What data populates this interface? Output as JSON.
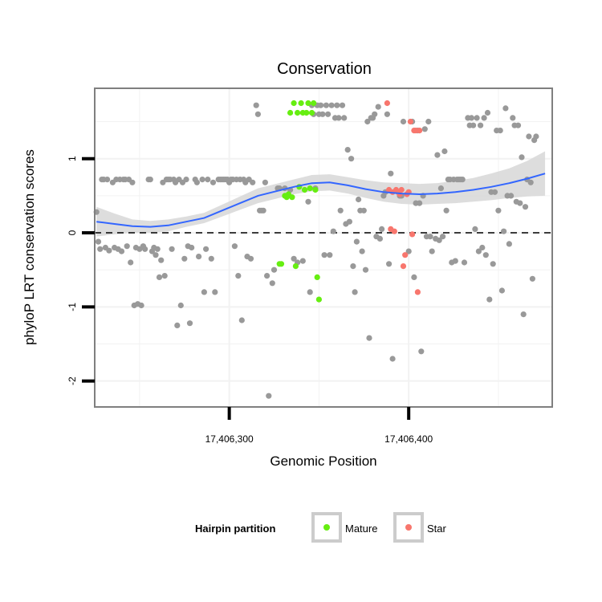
{
  "chart_data": {
    "type": "scatter",
    "title": "Conservation",
    "xlabel": "Genomic Position",
    "ylabel": "phyloP LRT conservation scores",
    "xlim": [
      17406225,
      17406480
    ],
    "ylim": [
      -2.35,
      1.95
    ],
    "x_ticks": [
      17406300,
      17406400
    ],
    "x_tick_labels": [
      "17,406,300",
      "17,406,400"
    ],
    "y_ticks": [
      -2,
      -1,
      0,
      1
    ],
    "y_tick_labels": [
      "-2",
      "-1",
      "0",
      "1"
    ],
    "grid": true,
    "reference_line": {
      "y": 0,
      "style": "dashed",
      "color": "#000000"
    },
    "legend": {
      "title": "Hairpin partition",
      "position": "bottom",
      "entries": [
        {
          "label": "Mature",
          "color": "#66ee11"
        },
        {
          "label": "Star",
          "color": "#f8766d"
        }
      ]
    },
    "colors": {
      "other": "#999999",
      "mature": "#66ee11",
      "star": "#f8766d",
      "smooth": "#3366ff",
      "ribbon": "#d9d9d9"
    },
    "series": [
      {
        "key": "other",
        "points": [
          [
            17406226,
            0.28
          ],
          [
            17406227,
            -0.12
          ],
          [
            17406228,
            -0.22
          ],
          [
            17406229,
            0.72
          ],
          [
            17406230,
            0.72
          ],
          [
            17406231,
            -0.2
          ],
          [
            17406232,
            0.72
          ],
          [
            17406233,
            -0.24
          ],
          [
            17406235,
            0.68
          ],
          [
            17406236,
            -0.2
          ],
          [
            17406237,
            0.72
          ],
          [
            17406238,
            -0.22
          ],
          [
            17406239,
            0.72
          ],
          [
            17406240,
            -0.25
          ],
          [
            17406241,
            0.72
          ],
          [
            17406242,
            0.72
          ],
          [
            17406243,
            -0.18
          ],
          [
            17406244,
            0.72
          ],
          [
            17406245,
            -0.4
          ],
          [
            17406246,
            0.68
          ],
          [
            17406247,
            -0.98
          ],
          [
            17406248,
            -0.2
          ],
          [
            17406249,
            -0.96
          ],
          [
            17406250,
            -0.22
          ],
          [
            17406251,
            -0.98
          ],
          [
            17406252,
            -0.18
          ],
          [
            17406253,
            -0.22
          ],
          [
            17406255,
            0.72
          ],
          [
            17406256,
            0.72
          ],
          [
            17406257,
            -0.25
          ],
          [
            17406258,
            -0.2
          ],
          [
            17406259,
            -0.3
          ],
          [
            17406260,
            -0.22
          ],
          [
            17406261,
            -0.6
          ],
          [
            17406262,
            -0.37
          ],
          [
            17406263,
            0.68
          ],
          [
            17406264,
            -0.58
          ],
          [
            17406265,
            0.72
          ],
          [
            17406266,
            0.72
          ],
          [
            17406267,
            0.72
          ],
          [
            17406268,
            -0.22
          ],
          [
            17406269,
            0.72
          ],
          [
            17406270,
            0.68
          ],
          [
            17406271,
            -1.25
          ],
          [
            17406272,
            0.72
          ],
          [
            17406273,
            -0.98
          ],
          [
            17406274,
            0.68
          ],
          [
            17406275,
            -0.35
          ],
          [
            17406276,
            0.72
          ],
          [
            17406277,
            -0.18
          ],
          [
            17406278,
            -1.22
          ],
          [
            17406279,
            -0.2
          ],
          [
            17406281,
            0.72
          ],
          [
            17406282,
            0.68
          ],
          [
            17406283,
            -0.32
          ],
          [
            17406285,
            0.72
          ],
          [
            17406286,
            -0.8
          ],
          [
            17406287,
            -0.22
          ],
          [
            17406288,
            0.72
          ],
          [
            17406290,
            -0.35
          ],
          [
            17406291,
            0.68
          ],
          [
            17406292,
            -0.8
          ],
          [
            17406294,
            0.72
          ],
          [
            17406295,
            0.72
          ],
          [
            17406296,
            0.72
          ],
          [
            17406297,
            0.72
          ],
          [
            17406298,
            0.72
          ],
          [
            17406299,
            0.72
          ],
          [
            17406300,
            0.68
          ],
          [
            17406301,
            0.72
          ],
          [
            17406302,
            0.72
          ],
          [
            17406303,
            -0.18
          ],
          [
            17406304,
            0.72
          ],
          [
            17406305,
            -0.58
          ],
          [
            17406306,
            0.72
          ],
          [
            17406307,
            -1.18
          ],
          [
            17406308,
            0.72
          ],
          [
            17406309,
            0.68
          ],
          [
            17406310,
            -0.32
          ],
          [
            17406311,
            0.72
          ],
          [
            17406312,
            -0.35
          ],
          [
            17406313,
            0.68
          ],
          [
            17406315,
            1.72
          ],
          [
            17406316,
            1.6
          ],
          [
            17406317,
            0.3
          ],
          [
            17406318,
            0.3
          ],
          [
            17406319,
            0.3
          ],
          [
            17406320,
            0.68
          ],
          [
            17406321,
            -0.58
          ],
          [
            17406322,
            -2.2
          ],
          [
            17406324,
            -0.68
          ],
          [
            17406325,
            -0.5
          ],
          [
            17406327,
            0.6
          ],
          [
            17406328,
            0.6
          ],
          [
            17406331,
            0.6
          ],
          [
            17406334,
            0.58
          ],
          [
            17406336,
            -0.35
          ],
          [
            17406338,
            -0.4
          ],
          [
            17406341,
            -0.38
          ],
          [
            17406344,
            0.42
          ],
          [
            17406345,
            -0.8
          ],
          [
            17406346,
            1.72
          ],
          [
            17406347,
            1.6
          ],
          [
            17406348,
            0.6
          ],
          [
            17406349,
            1.72
          ],
          [
            17406350,
            1.6
          ],
          [
            17406351,
            1.72
          ],
          [
            17406352,
            1.6
          ],
          [
            17406353,
            -0.3
          ],
          [
            17406354,
            1.72
          ],
          [
            17406355,
            1.6
          ],
          [
            17406356,
            -0.3
          ],
          [
            17406357,
            1.72
          ],
          [
            17406358,
            0.02
          ],
          [
            17406359,
            1.55
          ],
          [
            17406360,
            1.72
          ],
          [
            17406361,
            1.55
          ],
          [
            17406362,
            0.3
          ],
          [
            17406363,
            1.72
          ],
          [
            17406364,
            1.55
          ],
          [
            17406365,
            0.12
          ],
          [
            17406366,
            1.12
          ],
          [
            17406367,
            0.15
          ],
          [
            17406368,
            1.0
          ],
          [
            17406369,
            -0.45
          ],
          [
            17406370,
            -0.8
          ],
          [
            17406371,
            -0.12
          ],
          [
            17406372,
            0.45
          ],
          [
            17406373,
            0.3
          ],
          [
            17406374,
            -0.25
          ],
          [
            17406375,
            0.3
          ],
          [
            17406376,
            -0.5
          ],
          [
            17406377,
            1.5
          ],
          [
            17406378,
            -1.42
          ],
          [
            17406379,
            1.55
          ],
          [
            17406380,
            1.55
          ],
          [
            17406381,
            1.6
          ],
          [
            17406382,
            -0.05
          ],
          [
            17406383,
            1.7
          ],
          [
            17406384,
            -0.08
          ],
          [
            17406385,
            0.05
          ],
          [
            17406386,
            0.5
          ],
          [
            17406387,
            0.55
          ],
          [
            17406388,
            1.6
          ],
          [
            17406389,
            -0.42
          ],
          [
            17406390,
            0.8
          ],
          [
            17406391,
            -1.7
          ],
          [
            17406395,
            0.5
          ],
          [
            17406396,
            0.5
          ],
          [
            17406397,
            1.5
          ],
          [
            17406400,
            -0.25
          ],
          [
            17406402,
            1.5
          ],
          [
            17406403,
            -0.6
          ],
          [
            17406404,
            0.4
          ],
          [
            17406405,
            1.38
          ],
          [
            17406406,
            0.4
          ],
          [
            17406407,
            -1.6
          ],
          [
            17406408,
            0.5
          ],
          [
            17406409,
            1.4
          ],
          [
            17406410,
            -0.05
          ],
          [
            17406411,
            1.5
          ],
          [
            17406412,
            -0.05
          ],
          [
            17406413,
            -0.25
          ],
          [
            17406415,
            -0.08
          ],
          [
            17406416,
            1.05
          ],
          [
            17406417,
            -0.1
          ],
          [
            17406418,
            0.6
          ],
          [
            17406419,
            -0.05
          ],
          [
            17406420,
            1.1
          ],
          [
            17406421,
            0.3
          ],
          [
            17406422,
            0.72
          ],
          [
            17406423,
            0.72
          ],
          [
            17406424,
            -0.4
          ],
          [
            17406425,
            0.72
          ],
          [
            17406426,
            -0.38
          ],
          [
            17406427,
            0.72
          ],
          [
            17406428,
            0.72
          ],
          [
            17406429,
            0.72
          ],
          [
            17406430,
            0.72
          ],
          [
            17406431,
            -0.4
          ],
          [
            17406433,
            1.55
          ],
          [
            17406434,
            1.45
          ],
          [
            17406435,
            1.55
          ],
          [
            17406436,
            1.45
          ],
          [
            17406437,
            0.05
          ],
          [
            17406438,
            1.55
          ],
          [
            17406439,
            -0.25
          ],
          [
            17406440,
            1.45
          ],
          [
            17406441,
            -0.2
          ],
          [
            17406442,
            1.55
          ],
          [
            17406443,
            -0.3
          ],
          [
            17406444,
            1.62
          ],
          [
            17406445,
            -0.9
          ],
          [
            17406446,
            0.55
          ],
          [
            17406447,
            -0.42
          ],
          [
            17406448,
            0.55
          ],
          [
            17406449,
            1.38
          ],
          [
            17406450,
            0.3
          ],
          [
            17406451,
            1.38
          ],
          [
            17406452,
            -0.78
          ],
          [
            17406453,
            0.02
          ],
          [
            17406454,
            1.68
          ],
          [
            17406455,
            0.5
          ],
          [
            17406456,
            -0.15
          ],
          [
            17406457,
            0.5
          ],
          [
            17406458,
            1.55
          ],
          [
            17406459,
            1.45
          ],
          [
            17406460,
            0.42
          ],
          [
            17406461,
            1.45
          ],
          [
            17406462,
            0.4
          ],
          [
            17406463,
            1.02
          ],
          [
            17406464,
            -1.1
          ],
          [
            17406465,
            0.35
          ],
          [
            17406466,
            0.72
          ],
          [
            17406467,
            1.3
          ],
          [
            17406468,
            0.68
          ],
          [
            17406469,
            -0.62
          ],
          [
            17406470,
            1.25
          ],
          [
            17406471,
            1.3
          ]
        ]
      },
      {
        "key": "mature",
        "name": "Mature",
        "points": [
          [
            17406328,
            -0.42
          ],
          [
            17406329,
            -0.42
          ],
          [
            17406331,
            0.5
          ],
          [
            17406332,
            0.48
          ],
          [
            17406333,
            0.52
          ],
          [
            17406334,
            1.62
          ],
          [
            17406335,
            0.48
          ],
          [
            17406336,
            1.75
          ],
          [
            17406337,
            -0.45
          ],
          [
            17406338,
            1.62
          ],
          [
            17406339,
            0.62
          ],
          [
            17406340,
            1.75
          ],
          [
            17406341,
            1.62
          ],
          [
            17406342,
            0.58
          ],
          [
            17406343,
            1.62
          ],
          [
            17406344,
            1.75
          ],
          [
            17406345,
            0.6
          ],
          [
            17406346,
            1.62
          ],
          [
            17406347,
            1.75
          ],
          [
            17406348,
            0.58
          ],
          [
            17406349,
            -0.6
          ],
          [
            17406350,
            -0.9
          ]
        ]
      },
      {
        "key": "star",
        "name": "Star",
        "points": [
          [
            17406388,
            1.75
          ],
          [
            17406389,
            0.58
          ],
          [
            17406390,
            0.05
          ],
          [
            17406391,
            0.55
          ],
          [
            17406392,
            0.02
          ],
          [
            17406393,
            0.58
          ],
          [
            17406394,
            0.55
          ],
          [
            17406395,
            0.52
          ],
          [
            17406396,
            0.58
          ],
          [
            17406397,
            -0.45
          ],
          [
            17406398,
            -0.3
          ],
          [
            17406399,
            0.52
          ],
          [
            17406400,
            0.55
          ],
          [
            17406401,
            1.5
          ],
          [
            17406402,
            -0.02
          ],
          [
            17406403,
            1.38
          ],
          [
            17406404,
            1.38
          ],
          [
            17406405,
            -0.8
          ],
          [
            17406406,
            1.38
          ]
        ]
      }
    ],
    "smooth": {
      "x": [
        17406226,
        17406236,
        17406246,
        17406256,
        17406266,
        17406276,
        17406286,
        17406296,
        17406306,
        17406316,
        17406326,
        17406336,
        17406346,
        17406356,
        17406366,
        17406376,
        17406386,
        17406396,
        17406406,
        17406416,
        17406426,
        17406436,
        17406446,
        17406456,
        17406466,
        17406476
      ],
      "y": [
        0.15,
        0.12,
        0.09,
        0.08,
        0.1,
        0.15,
        0.2,
        0.3,
        0.4,
        0.5,
        0.56,
        0.62,
        0.67,
        0.68,
        0.64,
        0.59,
        0.55,
        0.53,
        0.52,
        0.53,
        0.55,
        0.58,
        0.62,
        0.67,
        0.73,
        0.8
      ],
      "lower": [
        -0.05,
        -0.02,
        0.0,
        0.0,
        0.02,
        0.08,
        0.13,
        0.22,
        0.31,
        0.4,
        0.46,
        0.52,
        0.56,
        0.57,
        0.53,
        0.47,
        0.42,
        0.39,
        0.38,
        0.39,
        0.4,
        0.42,
        0.44,
        0.47,
        0.49,
        0.5
      ],
      "upper": [
        0.35,
        0.26,
        0.18,
        0.16,
        0.18,
        0.22,
        0.27,
        0.38,
        0.49,
        0.6,
        0.66,
        0.72,
        0.78,
        0.79,
        0.75,
        0.71,
        0.68,
        0.67,
        0.66,
        0.67,
        0.7,
        0.74,
        0.8,
        0.87,
        0.97,
        1.1
      ]
    }
  }
}
